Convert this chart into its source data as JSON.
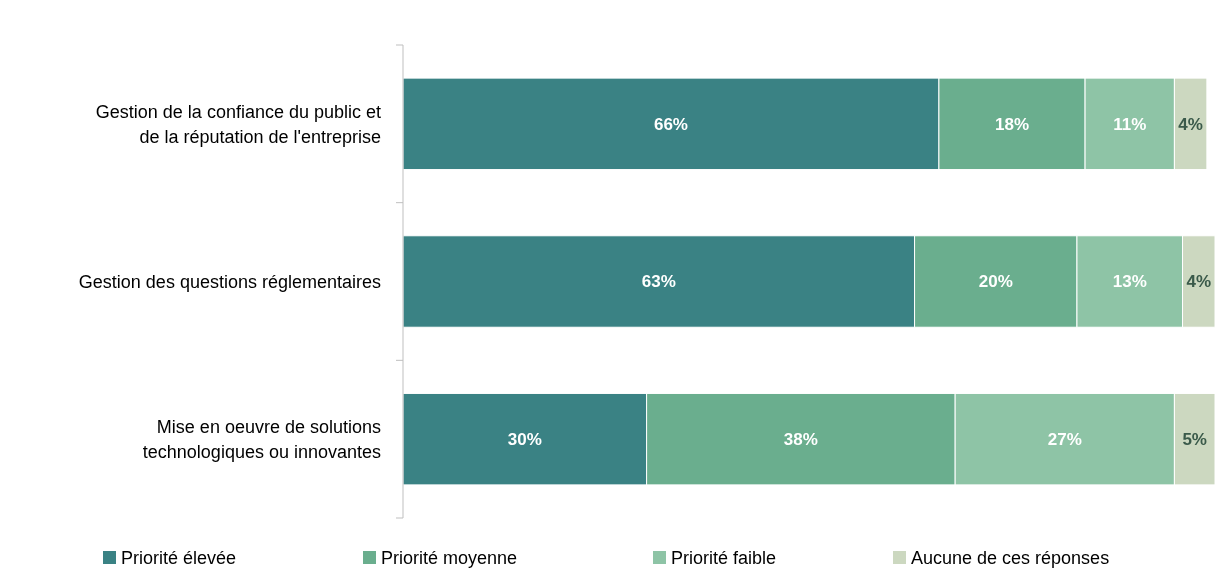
{
  "chart_data": {
    "type": "bar",
    "orientation": "horizontal",
    "stacked": true,
    "categories": [
      "Gestion de la confiance du public et de la réputation de l'entreprise",
      "Gestion des questions réglementaires",
      "Mise en oeuvre de solutions technologiques ou innovantes"
    ],
    "series": [
      {
        "name": "Priorité élevée",
        "color": "#3a8284",
        "values": [
          66,
          63,
          30
        ],
        "value_labels": [
          "66%",
          "63%",
          "30%"
        ]
      },
      {
        "name": "Priorité moyenne",
        "color": "#6aae8e",
        "values": [
          18,
          20,
          38
        ],
        "value_labels": [
          "18%",
          "20%",
          "38%"
        ]
      },
      {
        "name": "Priorité faible",
        "color": "#8ec4a6",
        "values": [
          11,
          13,
          27
        ],
        "value_labels": [
          "11%",
          "13%",
          "27%"
        ]
      },
      {
        "name": "Aucune de ces réponses",
        "color": "#ccd8c0",
        "values": [
          4,
          4,
          5
        ],
        "value_labels": [
          "4%",
          "4%",
          "5%"
        ]
      }
    ],
    "legend": "bottom"
  }
}
